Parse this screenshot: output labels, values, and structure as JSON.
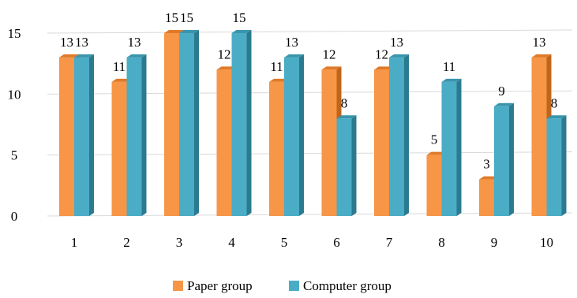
{
  "chart_data": {
    "type": "bar",
    "categories": [
      "1",
      "2",
      "3",
      "4",
      "5",
      "6",
      "7",
      "8",
      "9",
      "10"
    ],
    "series": [
      {
        "name": "Paper group",
        "values": [
          13,
          11,
          15,
          12,
          11,
          12,
          12,
          5,
          3,
          13
        ]
      },
      {
        "name": "Computer group",
        "values": [
          13,
          13,
          15,
          15,
          13,
          8,
          13,
          11,
          9,
          8
        ]
      }
    ],
    "ylim": [
      0,
      15
    ],
    "yticks": [
      "0",
      "5",
      "10",
      "15"
    ],
    "grid": true,
    "legend_position": "bottom",
    "colors": {
      "paper_front": "#F79646",
      "paper_side": "#C0651A",
      "paper_top": "#E07A2A",
      "computer_front": "#4BACC6",
      "computer_side": "#2B7A8F",
      "computer_top": "#3A95AC"
    }
  }
}
